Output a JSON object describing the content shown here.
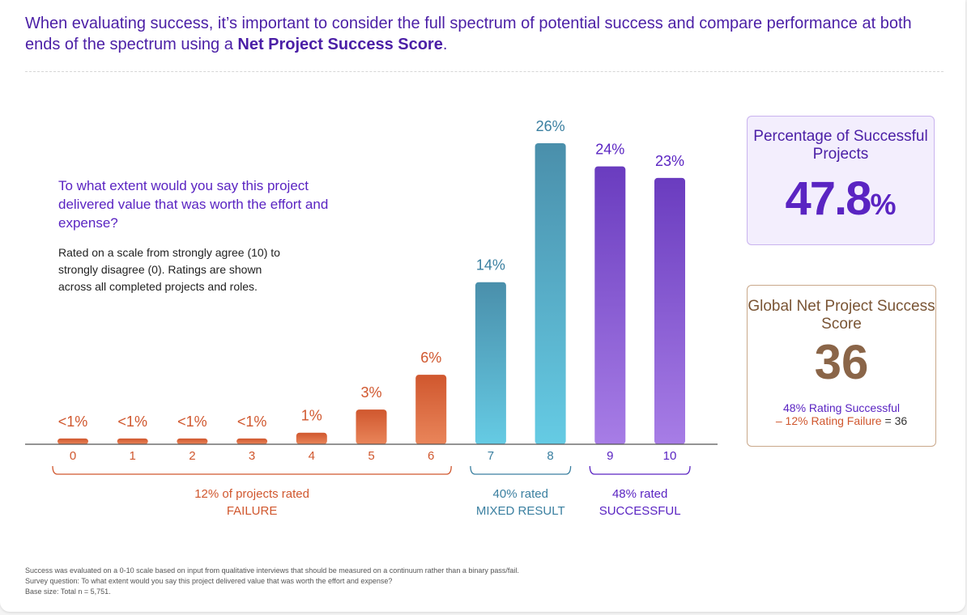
{
  "headline": {
    "text": "When evaluating success, it’s important to consider the full spectrum of potential success and compare performance at both ends of the spectrum using a ",
    "emphasis": "Net Project Success Score",
    "end": "."
  },
  "question": {
    "text": "To what extent would you say this project delivered value that was worth the effort and expense?",
    "note": "Rated on a scale from strongly agree (10) to strongly disagree (0). Ratings are shown across all completed projects and roles."
  },
  "chart_data": {
    "type": "bar",
    "categories": [
      "0",
      "1",
      "2",
      "3",
      "4",
      "5",
      "6",
      "7",
      "8",
      "9",
      "10"
    ],
    "values": [
      0.5,
      0.5,
      0.5,
      0.5,
      1,
      3,
      6,
      14,
      26,
      24,
      23
    ],
    "value_labels": [
      "<1%",
      "<1%",
      "<1%",
      "<1%",
      "1%",
      "3%",
      "6%",
      "14%",
      "26%",
      "24%",
      "23%"
    ],
    "ylim": [
      0,
      26
    ],
    "groups": [
      {
        "from": 0,
        "to": 6,
        "line1": "12% of projects rated",
        "line2": "FAILURE",
        "color": "#d0572e"
      },
      {
        "from": 7,
        "to": 8,
        "line1": "40% rated",
        "line2": "MIXED RESULT",
        "color": "#3a7fa0"
      },
      {
        "from": 9,
        "to": 10,
        "line1": "48% rated",
        "line2": "SUCCESSFUL",
        "color": "#5a24c2"
      }
    ],
    "colors": {
      "failure": [
        "#e9855a",
        "#d0572e"
      ],
      "mixed": [
        "#65cbe4",
        "#4a8fab"
      ],
      "success": [
        "#a77de6",
        "#6a3cbf"
      ]
    }
  },
  "percentage_box": {
    "label": "Percentage of Successful Projects",
    "value": "47.8",
    "unit": "%"
  },
  "score_box": {
    "label": "Global Net Project Success Score",
    "value": "36",
    "formula_success": "48% Rating Successful",
    "formula_failure": "– 12% Rating Failure",
    "formula_result": " = 36"
  },
  "footnotes": [
    "Success was evaluated on a 0-10 scale based on input from qualitative interviews that should be measured on a continuum rather than a binary pass/fail.",
    "Survey question: To what extent would you say this project delivered value that was worth the effort and expense?",
    "Base size: Total n = 5,751."
  ]
}
